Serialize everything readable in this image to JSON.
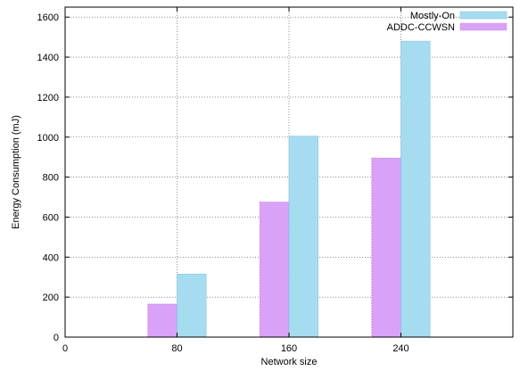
{
  "chart_data": {
    "type": "bar",
    "title": "",
    "xlabel": "Network size",
    "ylabel": "Energy Consumption (mJ)",
    "x_ticks": [
      0,
      80,
      160,
      240
    ],
    "xlim": [
      0,
      320
    ],
    "ylim": [
      0,
      1650
    ],
    "y_ticks": [
      0,
      200,
      400,
      600,
      800,
      1000,
      1200,
      1400,
      1600
    ],
    "grid": true,
    "legend_position": "top-right",
    "categories": [
      80,
      160,
      240
    ],
    "series": [
      {
        "name": "Mostly-On",
        "values": [
          315,
          1005,
          1480
        ],
        "color": "#a6dcf0"
      },
      {
        "name": "ADDC-CCWSN",
        "values": [
          165,
          675,
          895
        ],
        "color": "#d9a2f7"
      }
    ]
  }
}
